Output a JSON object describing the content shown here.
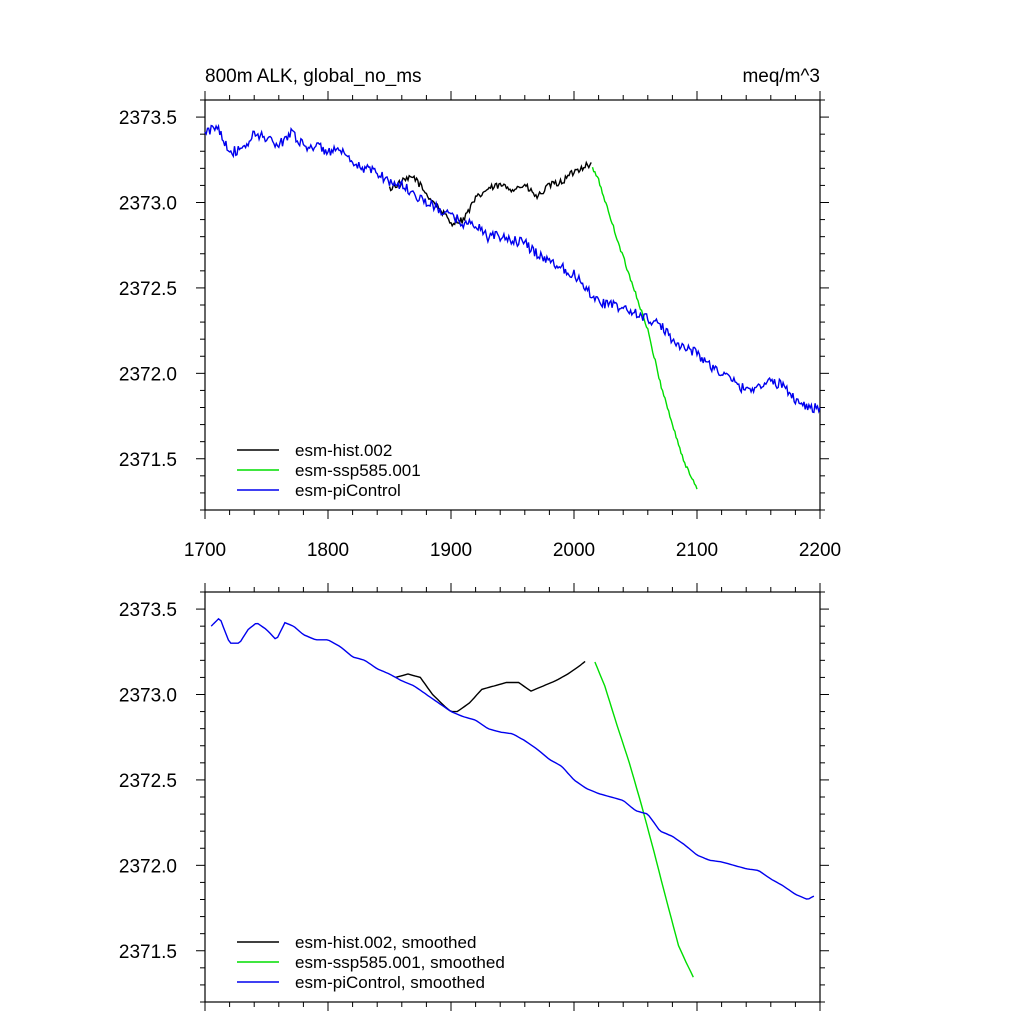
{
  "title_left": "800m ALK, global_no_ms",
  "title_right": "meq/m^3",
  "colors": {
    "hist": "#000000",
    "ssp": "#00dd00",
    "pic": "#0000ee"
  },
  "chart_data": [
    {
      "type": "line",
      "panel": "top",
      "title": "800m ALK, global_no_ms",
      "units": "meq/m^3",
      "xlim": [
        1700,
        2200
      ],
      "ylim": [
        2371.2,
        2373.6
      ],
      "xticks": [
        "1700",
        "1800",
        "1900",
        "2000",
        "2100",
        "2200"
      ],
      "yticks": [
        "2373.5",
        "2373.0",
        "2372.5",
        "2372.0",
        "2371.5"
      ],
      "legend_position": "bottom-left",
      "series": [
        {
          "name": "esm-hist.002",
          "color": "#000000",
          "noise": 0.02,
          "x": [
            1850,
            1860,
            1870,
            1880,
            1890,
            1900,
            1910,
            1920,
            1930,
            1940,
            1950,
            1960,
            1970,
            1980,
            1990,
            2000,
            2010,
            2014
          ],
          "y": [
            2373.08,
            2373.12,
            2373.15,
            2373.05,
            2372.97,
            2372.88,
            2372.9,
            2373.02,
            2373.08,
            2373.1,
            2373.08,
            2373.1,
            2373.03,
            2373.1,
            2373.12,
            2373.18,
            2373.22,
            2373.22
          ]
        },
        {
          "name": "esm-ssp585.001",
          "color": "#00dd00",
          "noise": 0.012,
          "x": [
            2015,
            2020,
            2030,
            2040,
            2050,
            2060,
            2070,
            2080,
            2090,
            2100
          ],
          "y": [
            2373.2,
            2373.13,
            2372.9,
            2372.68,
            2372.47,
            2372.25,
            2371.95,
            2371.7,
            2371.47,
            2371.33
          ]
        },
        {
          "name": "esm-piControl",
          "color": "#0000ee",
          "noise": 0.03,
          "x": [
            1700,
            1710,
            1720,
            1730,
            1740,
            1750,
            1760,
            1770,
            1780,
            1790,
            1800,
            1810,
            1820,
            1830,
            1840,
            1850,
            1860,
            1870,
            1880,
            1890,
            1900,
            1910,
            1920,
            1930,
            1940,
            1950,
            1960,
            1970,
            1980,
            1990,
            2000,
            2010,
            2020,
            2030,
            2040,
            2050,
            2060,
            2070,
            2080,
            2090,
            2100,
            2110,
            2120,
            2130,
            2140,
            2150,
            2160,
            2170,
            2180,
            2190,
            2200
          ],
          "y": [
            2373.4,
            2373.45,
            2373.3,
            2373.3,
            2373.4,
            2373.38,
            2373.33,
            2373.42,
            2373.33,
            2373.33,
            2373.3,
            2373.3,
            2373.22,
            2373.2,
            2373.18,
            2373.12,
            2373.1,
            2373.05,
            2373.0,
            2372.96,
            2372.92,
            2372.88,
            2372.87,
            2372.8,
            2372.8,
            2372.78,
            2372.76,
            2372.7,
            2372.66,
            2372.62,
            2372.58,
            2372.5,
            2372.42,
            2372.4,
            2372.38,
            2372.35,
            2372.32,
            2372.28,
            2372.2,
            2372.15,
            2372.12,
            2372.05,
            2372.0,
            2371.95,
            2371.9,
            2371.93,
            2371.95,
            2371.93,
            2371.85,
            2371.8,
            2371.8
          ]
        }
      ]
    },
    {
      "type": "line",
      "panel": "bottom",
      "xlim": [
        1700,
        2200
      ],
      "ylim": [
        2371.2,
        2373.6
      ],
      "yticks": [
        "2373.5",
        "2373.0",
        "2372.5",
        "2372.0",
        "2371.5"
      ],
      "legend_position": "bottom-left",
      "series": [
        {
          "name": "esm-hist.002, smoothed",
          "color": "#000000",
          "noise": 0,
          "x": [
            1855,
            1865,
            1875,
            1885,
            1895,
            1900,
            1905,
            1915,
            1925,
            1935,
            1945,
            1955,
            1965,
            1975,
            1985,
            1995,
            2005,
            2010
          ],
          "y": [
            2373.1,
            2373.12,
            2373.1,
            2373.0,
            2372.93,
            2372.9,
            2372.9,
            2372.95,
            2373.03,
            2373.05,
            2373.07,
            2373.07,
            2373.02,
            2373.05,
            2373.08,
            2373.12,
            2373.17,
            2373.2
          ]
        },
        {
          "name": "esm-ssp585.001, smoothed",
          "color": "#00dd00",
          "noise": 0,
          "x": [
            2017,
            2025,
            2035,
            2045,
            2055,
            2065,
            2075,
            2085,
            2090,
            2098
          ],
          "y": [
            2373.19,
            2373.05,
            2372.82,
            2372.6,
            2372.35,
            2372.08,
            2371.8,
            2371.53,
            2371.45,
            2371.33
          ]
        },
        {
          "name": "esm-piControl, smoothed",
          "color": "#0000ee",
          "noise": 0,
          "x": [
            1705,
            1712,
            1720,
            1728,
            1735,
            1742,
            1750,
            1758,
            1765,
            1772,
            1780,
            1790,
            1800,
            1810,
            1820,
            1830,
            1840,
            1850,
            1860,
            1870,
            1880,
            1890,
            1900,
            1910,
            1920,
            1930,
            1940,
            1950,
            1960,
            1970,
            1980,
            1990,
            2000,
            2010,
            2020,
            2030,
            2040,
            2050,
            2060,
            2070,
            2080,
            2090,
            2100,
            2110,
            2120,
            2130,
            2140,
            2150,
            2160,
            2170,
            2180,
            2190,
            2195
          ],
          "y": [
            2373.4,
            2373.45,
            2373.3,
            2373.3,
            2373.38,
            2373.42,
            2373.38,
            2373.32,
            2373.42,
            2373.4,
            2373.35,
            2373.32,
            2373.32,
            2373.28,
            2373.22,
            2373.2,
            2373.15,
            2373.12,
            2373.08,
            2373.05,
            2373.0,
            2372.95,
            2372.9,
            2372.87,
            2372.85,
            2372.8,
            2372.78,
            2372.77,
            2372.73,
            2372.68,
            2372.62,
            2372.58,
            2372.5,
            2372.45,
            2372.42,
            2372.4,
            2372.38,
            2372.32,
            2372.3,
            2372.2,
            2372.17,
            2372.12,
            2372.06,
            2372.03,
            2372.02,
            2372.0,
            2371.98,
            2371.97,
            2371.92,
            2371.88,
            2371.83,
            2371.8,
            2371.82
          ]
        }
      ]
    }
  ]
}
